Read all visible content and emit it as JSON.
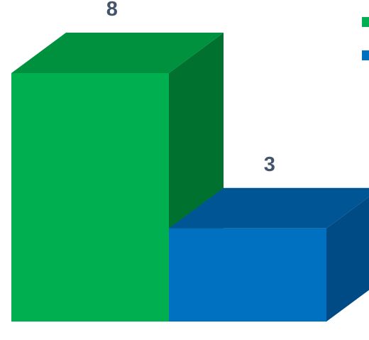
{
  "chart_data": {
    "type": "bar",
    "categories": [
      "",
      ""
    ],
    "values": [
      8,
      3
    ],
    "value_labels": [
      "8",
      "3"
    ],
    "ylim": [
      0,
      8
    ],
    "grid": false,
    "legend": "top-right",
    "legend_entries": [
      {
        "color": "#00b050",
        "label": ""
      },
      {
        "color": "#0070c0",
        "label": ""
      }
    ],
    "colors": {
      "green_front": "#00b050",
      "green_top": "#00913f",
      "green_side": "#00712f",
      "blue_front": "#0070c0",
      "blue_top": "#005595",
      "blue_side": "#004a85"
    }
  }
}
